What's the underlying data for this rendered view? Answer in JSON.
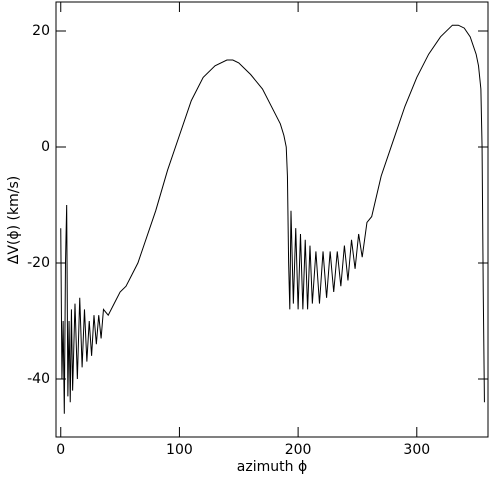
{
  "chart_data": {
    "type": "line",
    "xlabel": "azimuth ϕ",
    "ylabel": "ΔV(ϕ) (km/s)",
    "xlim": [
      -4,
      360
    ],
    "ylim": [
      -50,
      25
    ],
    "xticks": [
      0,
      100,
      200,
      300
    ],
    "yticks": [
      -40,
      -20,
      0,
      20
    ],
    "grid": false,
    "series": [
      {
        "color": "#000000",
        "x": [
          0,
          1,
          2,
          3,
          4,
          5,
          6,
          7,
          8,
          9,
          10,
          12,
          14,
          16,
          18,
          20,
          22,
          24,
          26,
          28,
          30,
          32,
          34,
          36,
          40,
          45,
          50,
          55,
          60,
          65,
          70,
          80,
          90,
          100,
          110,
          120,
          130,
          140,
          145,
          150,
          160,
          170,
          180,
          185,
          188,
          190,
          191,
          192,
          193,
          194,
          196,
          198,
          200,
          202,
          204,
          206,
          208,
          210,
          212,
          215,
          218,
          221,
          224,
          227,
          230,
          233,
          236,
          239,
          242,
          245,
          248,
          251,
          254,
          258,
          262,
          270,
          280,
          290,
          300,
          310,
          320,
          330,
          335,
          340,
          345,
          350,
          352,
          354,
          355,
          356,
          357
        ],
        "values": [
          -14,
          -40,
          -30,
          -46,
          -20,
          -10,
          -43,
          -30,
          -44,
          -28,
          -42,
          -27,
          -40,
          -26,
          -38,
          -28,
          -37,
          -30,
          -36,
          -29,
          -34,
          -29,
          -33,
          -28,
          -29,
          -27,
          -25,
          -24,
          -22,
          -20,
          -17,
          -11,
          -4,
          2,
          8,
          12,
          14,
          15,
          15,
          14.5,
          12.5,
          10,
          6,
          4,
          2,
          0,
          -5,
          -20,
          -28,
          -11,
          -27,
          -14,
          -28,
          -15,
          -28,
          -16,
          -28,
          -17,
          -27,
          -18,
          -27,
          -18,
          -26,
          -18,
          -25,
          -18,
          -24,
          -17,
          -23,
          -16,
          -21,
          -15,
          -19,
          -13,
          -12,
          -5,
          1,
          7,
          12,
          16,
          19,
          21,
          21,
          20.5,
          19,
          16,
          14,
          10,
          0,
          -25,
          -44
        ]
      }
    ]
  }
}
